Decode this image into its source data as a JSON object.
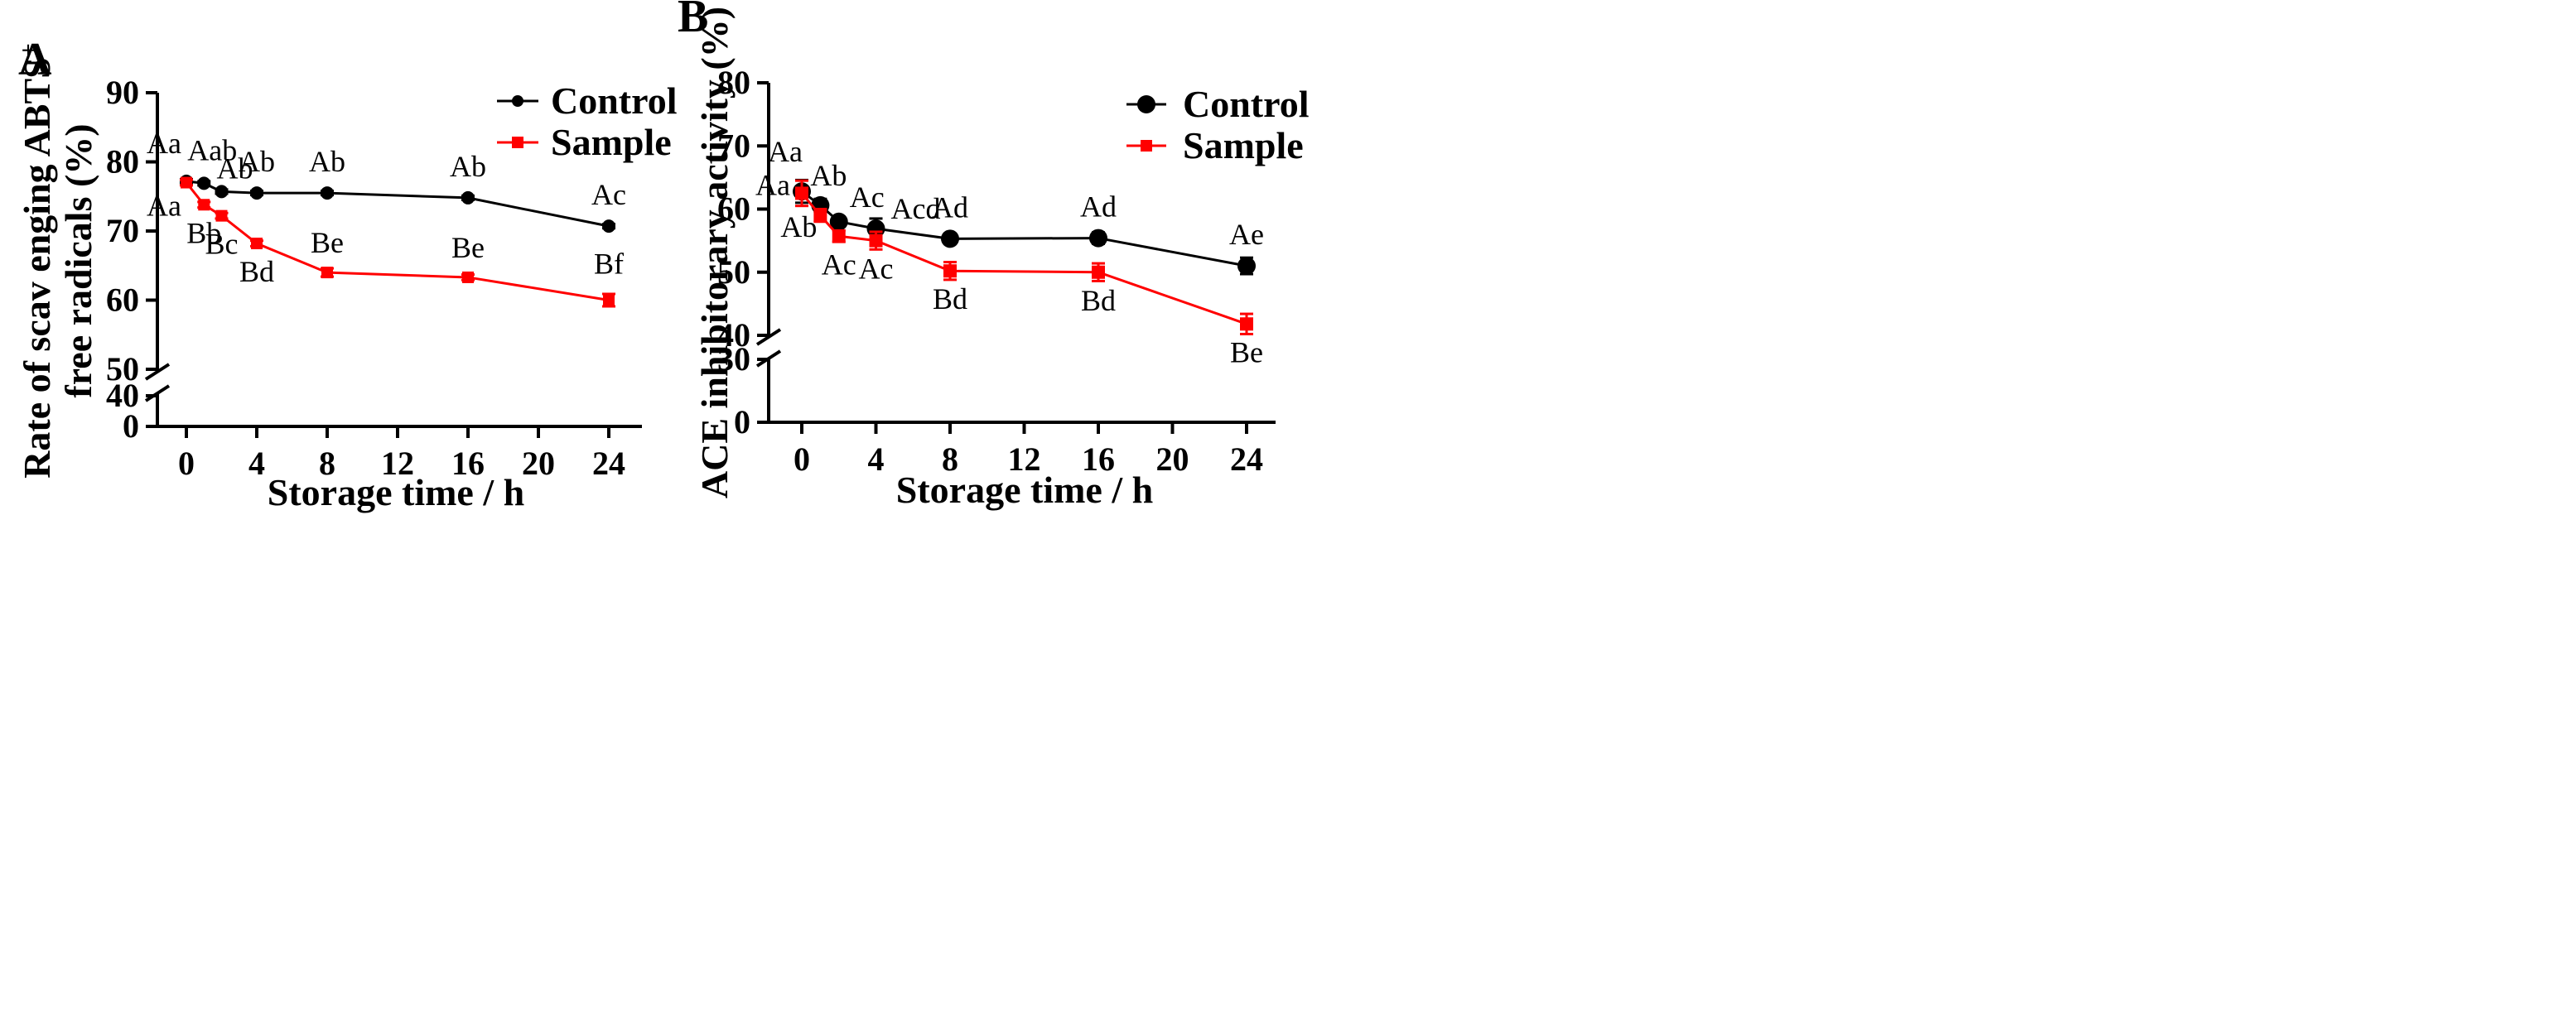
{
  "chart_data": [
    {
      "panel": "A",
      "type": "line",
      "xlabel": "Storage time / h",
      "ylabel_line1": "Rate of scav enging ABTS",
      "ylabel_sup": "+",
      "ylabel_line2": "free radicals (%)",
      "x_ticks": [
        0,
        4,
        8,
        12,
        16,
        20,
        24
      ],
      "y_ticks_upper": [
        50,
        60,
        70,
        80,
        90
      ],
      "y_ticks_lower": [
        0,
        40
      ],
      "ylim_upper": [
        50,
        90
      ],
      "ylim_lower": [
        0,
        40
      ],
      "x": [
        0,
        1,
        2,
        4,
        8,
        16,
        24
      ],
      "series": [
        {
          "name": "Control",
          "color": "#000000",
          "marker": "circle",
          "values": [
            77.2,
            76.9,
            75.7,
            75.5,
            75.5,
            74.8,
            70.7
          ],
          "errors": [
            0.3,
            0.3,
            0.3,
            0.3,
            0.3,
            0.3,
            0.3
          ],
          "labels": [
            "Aa",
            "Aab",
            "Ab",
            "Ab",
            "Ab",
            "Ab",
            "Ac"
          ]
        },
        {
          "name": "Sample",
          "color": "#ff0000",
          "marker": "square",
          "values": [
            77.0,
            73.8,
            72.2,
            68.2,
            64.0,
            63.3,
            60.0
          ],
          "errors": [
            0.4,
            0.4,
            0.4,
            0.4,
            0.6,
            0.4,
            0.9
          ],
          "labels": [
            "Aa",
            "Bb",
            "Bc",
            "Bd",
            "Be",
            "Be",
            "Bf"
          ]
        }
      ]
    },
    {
      "panel": "B",
      "type": "line",
      "xlabel": "Storage time / h",
      "ylabel_line1": "ACE inhibitorary activity (%)",
      "x_ticks": [
        0,
        4,
        8,
        12,
        16,
        20,
        24
      ],
      "y_ticks_upper": [
        40,
        50,
        60,
        70,
        80
      ],
      "y_ticks_lower": [
        0,
        30
      ],
      "ylim_upper": [
        40,
        80
      ],
      "ylim_lower": [
        0,
        30
      ],
      "x": [
        0,
        1,
        2,
        4,
        8,
        16,
        24
      ],
      "series": [
        {
          "name": "Control",
          "color": "#000000",
          "marker": "circle",
          "values": [
            62.8,
            60.6,
            58.0,
            56.9,
            55.3,
            55.4,
            51.0
          ],
          "errors": [
            1.8,
            1.0,
            0.6,
            1.6,
            0.6,
            0.9,
            1.3
          ],
          "labels": [
            "Aa",
            "Ab",
            "Ac",
            "Acd",
            "Ad",
            "Ad",
            "Ae"
          ]
        },
        {
          "name": "Sample",
          "color": "#ff0000",
          "marker": "square",
          "values": [
            62.5,
            59.0,
            55.7,
            55.0,
            50.2,
            50.0,
            41.8
          ],
          "errors": [
            2.0,
            1.0,
            0.9,
            1.4,
            1.4,
            1.4,
            1.6
          ],
          "labels": [
            "Aa",
            "Ab",
            "Ac",
            "Ac",
            "Bd",
            "Bd",
            "Be"
          ]
        }
      ]
    }
  ]
}
